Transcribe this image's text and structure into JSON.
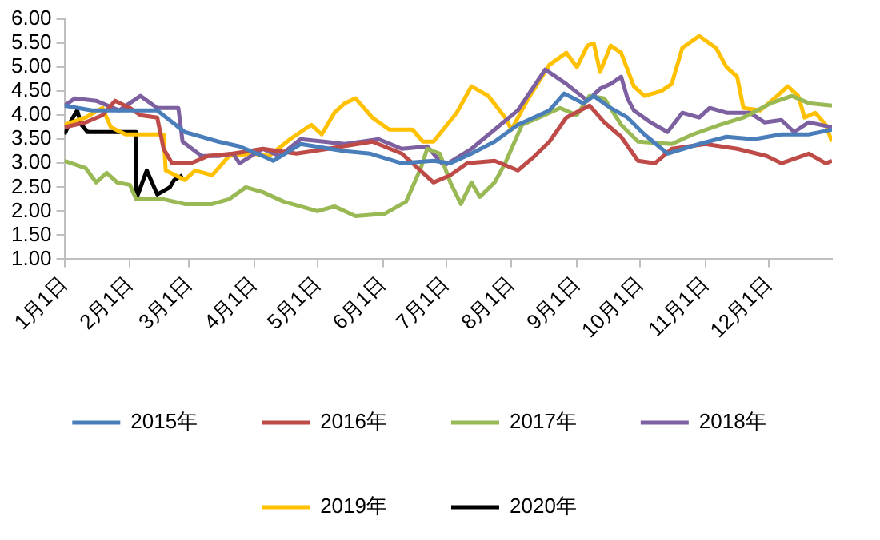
{
  "chart_data": {
    "type": "line",
    "xlim": [
      "--01-01",
      "--12-31"
    ],
    "xticks": [
      {
        "value": "--01-01",
        "label": "1月1日"
      },
      {
        "value": "--02-01",
        "label": "2月1日"
      },
      {
        "value": "--03-01",
        "label": "3月1日"
      },
      {
        "value": "--04-01",
        "label": "4月1日"
      },
      {
        "value": "--05-01",
        "label": "5月1日"
      },
      {
        "value": "--06-01",
        "label": "6月1日"
      },
      {
        "value": "--07-01",
        "label": "7月1日"
      },
      {
        "value": "--08-01",
        "label": "8月1日"
      },
      {
        "value": "--09-01",
        "label": "9月1日"
      },
      {
        "value": "--10-01",
        "label": "10月1日"
      },
      {
        "value": "--11-01",
        "label": "11月1日"
      },
      {
        "value": "--12-01",
        "label": "12月1日"
      }
    ],
    "ylim": [
      1,
      6
    ],
    "yticks": [
      {
        "value": 1,
        "label": "1.00"
      },
      {
        "value": 1.5,
        "label": "1.50"
      },
      {
        "value": 2,
        "label": "2.00"
      },
      {
        "value": 2.5,
        "label": "2.50"
      },
      {
        "value": 3,
        "label": "3.00"
      },
      {
        "value": 3.5,
        "label": "3.50"
      },
      {
        "value": 4,
        "label": "4.00"
      },
      {
        "value": 4.5,
        "label": "4.50"
      },
      {
        "value": 5,
        "label": "5.00"
      },
      {
        "value": 5.5,
        "label": "5.50"
      },
      {
        "value": 6,
        "label": "6.00"
      }
    ],
    "grid": false,
    "legend": "bottom",
    "marker": "none",
    "line_style": "solid",
    "series": [
      {
        "name": "2015年",
        "color": "#4a7ebb",
        "x": [
          "--01-01",
          "--01-14",
          "--02-04",
          "--02-14",
          "--02-27",
          "--03-15",
          "--03-25",
          "--04-05",
          "--04-10",
          "--04-23",
          "--05-14",
          "--05-26",
          "--06-10",
          "--06-25",
          "--07-03",
          "--07-13",
          "--07-24",
          "--08-04",
          "--08-19",
          "--08-26",
          "--09-04",
          "--09-09",
          "--09-17",
          "--09-25",
          "--10-03",
          "--10-14",
          "--10-29",
          "--11-11",
          "--11-24",
          "--12-07",
          "--12-20",
          "--12-31"
        ],
        "values": [
          4.2,
          4.1,
          4.1,
          4.1,
          3.65,
          3.45,
          3.35,
          3.15,
          3.05,
          3.4,
          3.25,
          3.2,
          3.0,
          3.05,
          3.0,
          3.2,
          3.45,
          3.8,
          4.1,
          4.45,
          4.25,
          4.4,
          4.15,
          3.95,
          3.6,
          3.2,
          3.4,
          3.55,
          3.5,
          3.6,
          3.6,
          3.7
        ]
      },
      {
        "name": "2016年",
        "color": "#be4b48",
        "x": [
          "--01-01",
          "--01-11",
          "--01-19",
          "--01-25",
          "--02-01",
          "--02-06",
          "--02-14",
          "--02-17",
          "--02-21",
          "--03-02",
          "--03-10",
          "--03-22",
          "--04-05",
          "--04-21",
          "--05-06",
          "--05-27",
          "--06-10",
          "--06-25",
          "--07-03",
          "--07-11",
          "--07-24",
          "--08-04",
          "--08-12",
          "--08-19",
          "--08-27",
          "--09-07",
          "--09-14",
          "--09-22",
          "--09-30",
          "--10-08",
          "--10-16",
          "--11-01",
          "--11-16",
          "--11-30",
          "--12-07",
          "--12-20",
          "--12-28",
          "--12-31"
        ],
        "values": [
          3.75,
          3.85,
          4.0,
          4.3,
          4.15,
          4.0,
          3.95,
          3.3,
          3.0,
          3.0,
          3.15,
          3.2,
          3.3,
          3.2,
          3.3,
          3.45,
          3.2,
          2.6,
          2.75,
          3.0,
          3.05,
          2.85,
          3.15,
          3.45,
          3.95,
          4.2,
          3.85,
          3.55,
          3.05,
          3.0,
          3.3,
          3.4,
          3.3,
          3.15,
          3.0,
          3.2,
          3.0,
          3.05
        ]
      },
      {
        "name": "2017年",
        "color": "#98b954",
        "x": [
          "--01-01",
          "--01-11",
          "--01-16",
          "--01-21",
          "--01-26",
          "--02-01",
          "--02-04",
          "--02-17",
          "--02-27",
          "--03-12",
          "--03-20",
          "--03-28",
          "--04-05",
          "--04-15",
          "--05-01",
          "--05-09",
          "--05-19",
          "--06-02",
          "--06-12",
          "--06-19",
          "--06-22",
          "--06-28",
          "--07-03",
          "--07-08",
          "--07-13",
          "--07-17",
          "--07-24",
          "--07-29",
          "--08-06",
          "--08-14",
          "--08-24",
          "--09-01",
          "--09-07",
          "--09-14",
          "--09-22",
          "--09-30",
          "--10-16",
          "--10-26",
          "--11-08",
          "--11-19",
          "--12-02",
          "--12-12",
          "--12-20",
          "--12-31"
        ],
        "values": [
          3.05,
          2.9,
          2.6,
          2.8,
          2.6,
          2.55,
          2.25,
          2.25,
          2.15,
          2.15,
          2.25,
          2.5,
          2.4,
          2.2,
          2.0,
          2.1,
          1.9,
          1.95,
          2.2,
          2.9,
          3.3,
          3.2,
          2.6,
          2.15,
          2.6,
          2.3,
          2.6,
          3.0,
          3.8,
          3.95,
          4.15,
          4.0,
          4.4,
          4.35,
          3.8,
          3.45,
          3.4,
          3.6,
          3.8,
          3.95,
          4.25,
          4.4,
          4.25,
          4.2
        ]
      },
      {
        "name": "2018年",
        "color": "#7d60a0",
        "x": [
          "--01-01",
          "--01-06",
          "--01-16",
          "--01-27",
          "--02-06",
          "--02-14",
          "--02-24",
          "--02-26",
          "--03-07",
          "--03-15",
          "--03-22",
          "--03-25",
          "--04-05",
          "--04-13",
          "--04-23",
          "--05-04",
          "--05-14",
          "--05-30",
          "--06-10",
          "--06-22",
          "--06-30",
          "--07-13",
          "--07-24",
          "--08-04",
          "--08-17",
          "--08-27",
          "--09-06",
          "--09-12",
          "--09-17",
          "--09-22",
          "--09-25",
          "--09-28",
          "--10-06",
          "--10-14",
          "--10-21",
          "--10-29",
          "--11-03",
          "--11-11",
          "--11-22",
          "--11-29",
          "--12-07",
          "--12-13",
          "--12-20",
          "--12-31"
        ],
        "values": [
          4.2,
          4.35,
          4.3,
          4.1,
          4.4,
          4.15,
          4.15,
          3.45,
          3.15,
          3.15,
          3.2,
          3.0,
          3.3,
          3.15,
          3.5,
          3.45,
          3.4,
          3.5,
          3.3,
          3.35,
          2.95,
          3.3,
          3.7,
          4.1,
          4.95,
          4.65,
          4.3,
          4.55,
          4.65,
          4.8,
          4.35,
          4.1,
          3.85,
          3.65,
          4.05,
          3.95,
          4.15,
          4.05,
          4.05,
          3.85,
          3.9,
          3.65,
          3.85,
          3.75
        ]
      },
      {
        "name": "2019年",
        "color": "#ffc000",
        "x": [
          "--01-01",
          "--01-11",
          "--01-19",
          "--01-23",
          "--01-30",
          "--02-17",
          "--02-18",
          "--02-27",
          "--03-04",
          "--03-12",
          "--03-20",
          "--03-31",
          "--04-08",
          "--04-18",
          "--04-28",
          "--05-03",
          "--05-09",
          "--05-14",
          "--05-19",
          "--05-27",
          "--06-04",
          "--06-15",
          "--06-20",
          "--06-25",
          "--07-06",
          "--07-13",
          "--07-21",
          "--07-29",
          "--08-01",
          "--08-09",
          "--08-19",
          "--08-27",
          "--09-01",
          "--09-06",
          "--09-09",
          "--09-12",
          "--09-17",
          "--09-22",
          "--09-28",
          "--10-03",
          "--10-11",
          "--10-16",
          "--10-21",
          "--10-29",
          "--11-06",
          "--11-11",
          "--11-16",
          "--11-19",
          "--11-27",
          "--12-05",
          "--12-10",
          "--12-15",
          "--12-18",
          "--12-23",
          "--12-28",
          "--12-31"
        ],
        "values": [
          3.8,
          3.95,
          4.15,
          3.75,
          3.6,
          3.6,
          2.85,
          2.65,
          2.85,
          2.75,
          3.15,
          3.2,
          3.15,
          3.5,
          3.8,
          3.6,
          4.05,
          4.25,
          4.35,
          3.95,
          3.7,
          3.7,
          3.45,
          3.45,
          4.05,
          4.6,
          4.4,
          3.95,
          3.7,
          4.35,
          5.05,
          5.3,
          5.0,
          5.45,
          5.5,
          4.9,
          5.45,
          5.3,
          4.6,
          4.4,
          4.5,
          4.65,
          5.4,
          5.65,
          5.4,
          5.0,
          4.8,
          4.15,
          4.1,
          4.4,
          4.6,
          4.4,
          3.95,
          4.05,
          3.8,
          3.45
        ]
      },
      {
        "name": "2020年",
        "color": "#000000",
        "x": [
          "--01-01",
          "--01-03",
          "--01-07",
          "--01-09",
          "--01-12",
          "--02-04",
          "--02-04",
          "--02-09",
          "--02-14",
          "--02-20",
          "--02-22",
          "--02-26"
        ],
        "values": [
          3.6,
          3.8,
          4.1,
          3.8,
          3.65,
          3.65,
          2.25,
          2.85,
          2.35,
          2.5,
          2.65,
          2.75
        ]
      }
    ]
  }
}
